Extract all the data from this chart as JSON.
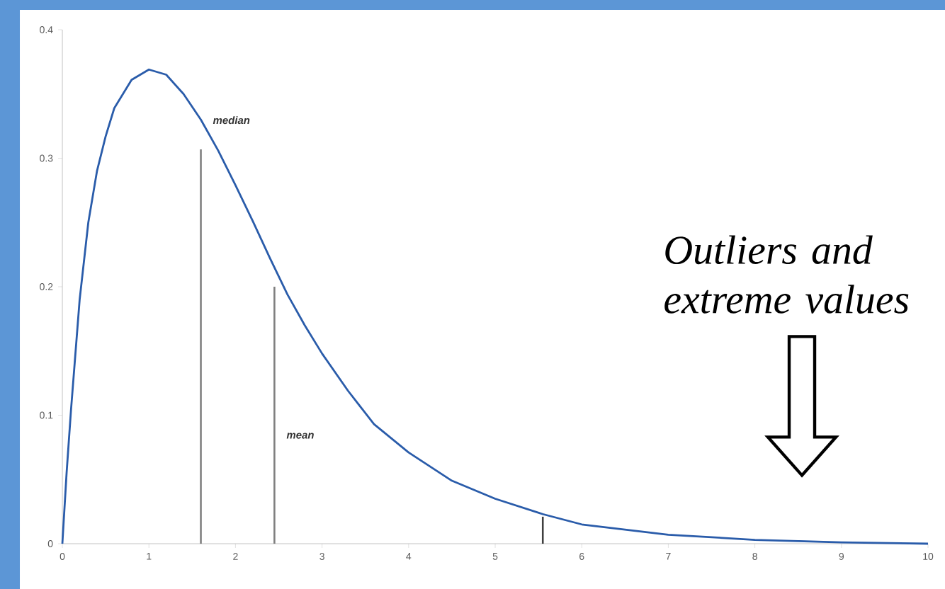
{
  "chart_data": {
    "type": "line",
    "series": [
      {
        "color": "#2a5caa",
        "x": [
          0,
          0.05,
          0.1,
          0.2,
          0.3,
          0.4,
          0.5,
          0.6,
          0.8,
          1.0,
          1.2,
          1.4,
          1.6,
          1.8,
          2.0,
          2.2,
          2.4,
          2.6,
          2.8,
          3.0,
          3.3,
          3.6,
          4.0,
          4.5,
          5.0,
          5.55,
          6.0,
          7.0,
          8.0,
          9.0,
          10.0
        ],
        "values": [
          0,
          0.056,
          0.104,
          0.19,
          0.25,
          0.29,
          0.317,
          0.339,
          0.361,
          0.369,
          0.365,
          0.35,
          0.33,
          0.306,
          0.279,
          0.251,
          0.222,
          0.194,
          0.17,
          0.148,
          0.119,
          0.093,
          0.071,
          0.049,
          0.035,
          0.023,
          0.015,
          0.007,
          0.003,
          0.001,
          0
        ]
      },
      {
        "color": "#404040",
        "x": [
          5.55,
          5.55
        ],
        "values": [
          0,
          0.021
        ]
      }
    ],
    "xlim": [
      0,
      10
    ],
    "xticks": [
      0,
      1,
      2,
      3,
      4,
      5,
      6,
      7,
      8,
      9,
      10
    ],
    "ylim": [
      0,
      0.4
    ],
    "yticks": [
      0,
      0.1,
      0.2,
      0.3,
      0.4
    ],
    "grid": false,
    "marker": "none",
    "line_style": "solid",
    "ref_lines": [
      {
        "axis": "x",
        "value": 1.6,
        "label": "median",
        "color": "#808080"
      },
      {
        "axis": "x",
        "value": 2.45,
        "label": "mean",
        "color": "#808080"
      }
    ],
    "annotations": [
      "Outliers and extreme values"
    ]
  }
}
